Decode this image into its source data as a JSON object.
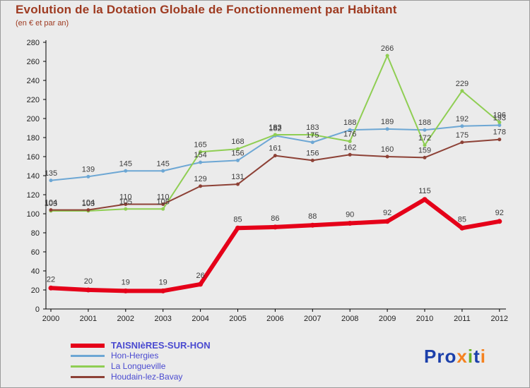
{
  "header": {
    "title": "Evolution de la Dotation Globale de Fonctionnement par Habitant",
    "subtitle": "(en € et par an)",
    "title_color": "#9e3a20"
  },
  "chart_data": {
    "type": "line",
    "title": "Evolution de la Dotation Globale de Fonctionnement par Habitant",
    "subtitle": "(en € et par an)",
    "x": [
      2000,
      2001,
      2002,
      2003,
      2004,
      2005,
      2006,
      2007,
      2008,
      2009,
      2010,
      2011,
      2012
    ],
    "ylim": [
      0,
      280
    ],
    "ytick_step": 20,
    "grid": false,
    "legend_position": "bottom-left",
    "series": [
      {
        "name": "TAISNIèRES-SUR-HON",
        "color": "#e50019",
        "width": 6,
        "values": [
          22,
          20,
          19,
          19,
          26,
          85,
          86,
          88,
          90,
          92,
          115,
          85,
          92
        ]
      },
      {
        "name": "Hon-Hergies",
        "color": "#6da7d4",
        "width": 2,
        "values": [
          135,
          139,
          145,
          145,
          154,
          156,
          182,
          175,
          188,
          189,
          188,
          192,
          193
        ]
      },
      {
        "name": "La Longueville",
        "color": "#8fce53",
        "width": 2,
        "values": [
          103,
          103,
          105,
          105,
          165,
          168,
          183,
          183,
          176,
          266,
          172,
          229,
          196
        ]
      },
      {
        "name": "Houdain-lez-Bavay",
        "color": "#8d4136",
        "width": 2,
        "values": [
          104,
          104,
          110,
          110,
          129,
          131,
          161,
          156,
          162,
          160,
          159,
          175,
          178
        ]
      }
    ]
  },
  "legend": {
    "text_color": "#4a4ad0"
  },
  "logo": {
    "letters": [
      {
        "ch": "P",
        "color": "#1b3faa"
      },
      {
        "ch": "r",
        "color": "#1b3faa"
      },
      {
        "ch": "o",
        "color": "#1b3faa"
      },
      {
        "ch": "x",
        "color": "#f58220"
      },
      {
        "ch": "i",
        "color": "#6ab023"
      },
      {
        "ch": "t",
        "color": "#1b3faa"
      },
      {
        "ch": "i",
        "color": "#f58220"
      }
    ]
  }
}
